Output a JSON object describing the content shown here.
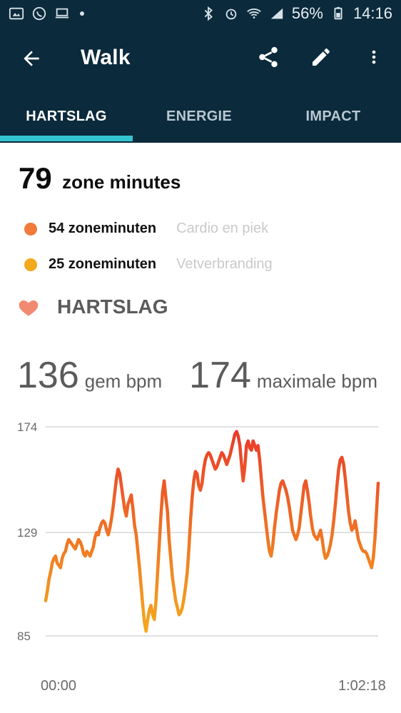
{
  "status": {
    "battery": "56%",
    "time": "14:16"
  },
  "header": {
    "title": "Walk"
  },
  "tabs": [
    {
      "label": "HARTSLAG",
      "active": true
    },
    {
      "label": "ENERGIE",
      "active": false
    },
    {
      "label": "IMPACT",
      "active": false
    }
  ],
  "summary": {
    "total": "79",
    "label": "zone minutes"
  },
  "zones": [
    {
      "value": "54 zoneminuten",
      "desc": "Cardio en piek",
      "color": "#f07b3a"
    },
    {
      "value": "25 zoneminuten",
      "desc": "Vetverbranding",
      "color": "#f2a91e"
    }
  ],
  "heart": {
    "title": "HARTSLAG",
    "avg_value": "136",
    "avg_label": "gem bpm",
    "max_value": "174",
    "max_label": "maximale bpm"
  },
  "chart_data": {
    "type": "line",
    "x_start_label": "00:00",
    "x_end_label": "1:02:18",
    "y_ticks": [
      85,
      129,
      174
    ],
    "y_range": [
      85,
      174
    ],
    "series": [
      {
        "values": [
          100,
          104,
          109,
          112,
          116,
          118,
          119,
          116,
          115,
          114,
          118,
          120,
          121,
          124,
          126,
          125,
          124,
          123,
          122,
          124,
          126,
          125,
          123,
          120,
          119,
          121,
          120,
          119,
          121,
          123,
          127,
          129,
          128,
          131,
          133,
          134,
          133,
          130,
          128,
          131,
          135,
          140,
          146,
          152,
          156,
          154,
          149,
          144,
          139,
          136,
          141,
          143,
          145,
          139,
          132,
          128,
          121,
          114,
          106,
          98,
          91,
          87,
          92,
          96,
          98,
          94,
          92,
          100,
          112,
          124,
          136,
          146,
          151,
          144,
          138,
          126,
          118,
          110,
          105,
          100,
          97,
          94,
          95,
          97,
          101,
          106,
          112,
          122,
          134,
          144,
          151,
          155,
          154,
          149,
          147,
          150,
          156,
          160,
          162,
          163,
          162,
          160,
          158,
          156,
          157,
          159,
          161,
          163,
          162,
          160,
          158,
          160,
          162,
          165,
          168,
          171,
          172,
          170,
          166,
          158,
          151,
          157,
          166,
          168,
          165,
          164,
          168,
          166,
          164,
          166,
          160,
          152,
          144,
          138,
          132,
          126,
          121,
          119,
          124,
          131,
          137,
          142,
          147,
          150,
          151,
          149,
          147,
          144,
          140,
          135,
          130,
          128,
          126,
          128,
          131,
          137,
          143,
          149,
          151,
          147,
          142,
          136,
          131,
          128,
          127,
          126,
          128,
          130,
          126,
          121,
          118,
          119,
          121,
          124,
          128,
          134,
          141,
          149,
          156,
          160,
          161,
          158,
          152,
          145,
          138,
          133,
          130,
          131,
          134,
          130,
          126,
          124,
          122,
          121,
          121,
          120,
          118,
          116,
          114,
          118,
          126,
          138,
          150
        ]
      }
    ],
    "colors": {
      "high": "#ea3b2b",
      "low": "#f5a81c",
      "grid": "#d7d7d7",
      "tick_text": "#6a6a6a"
    }
  }
}
